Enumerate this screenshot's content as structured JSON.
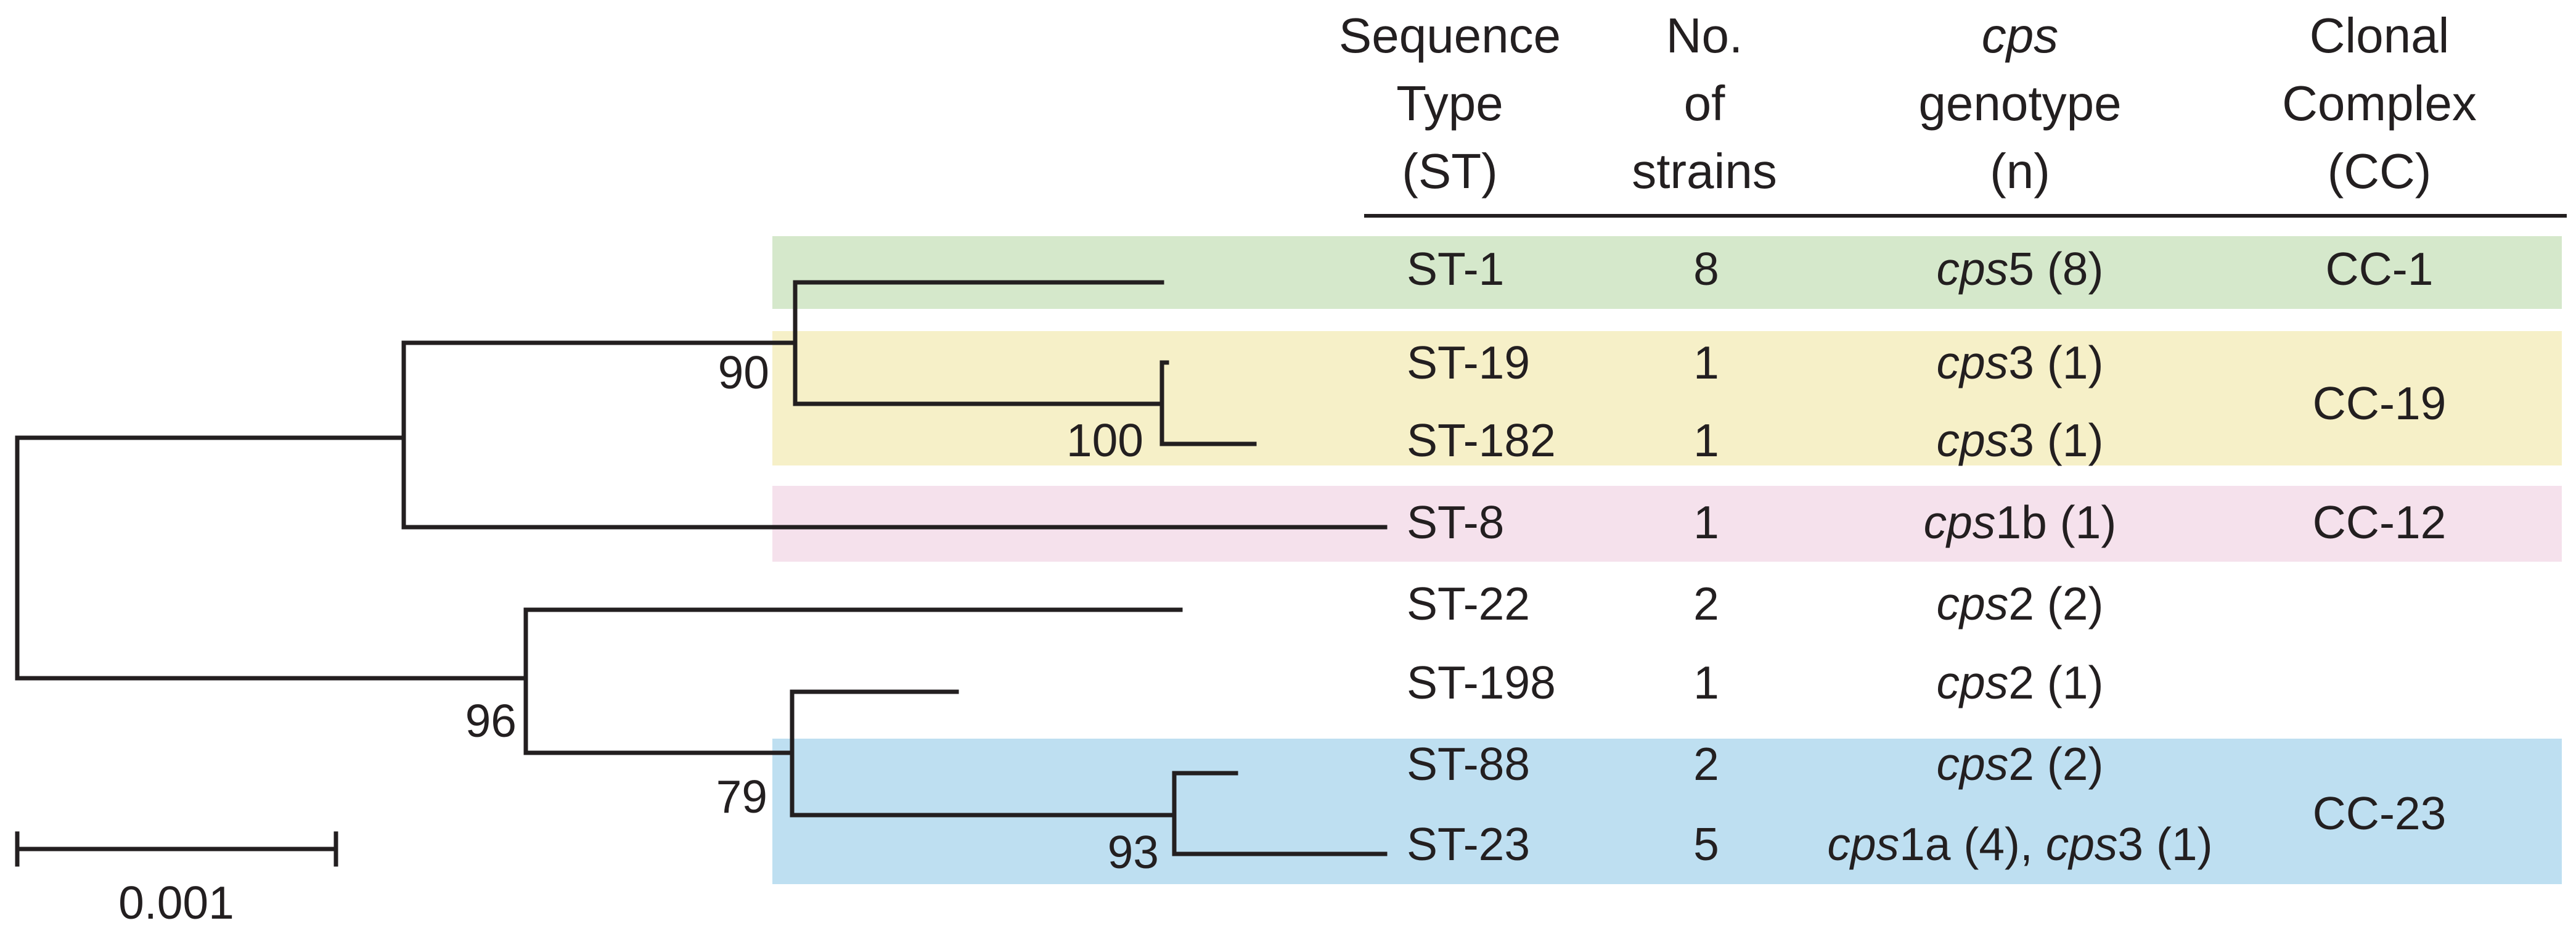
{
  "colors": {
    "cc1": "#d5e8cb",
    "cc19": "#f6f0c8",
    "cc12": "#f5e1ec",
    "cc23": "#bedff1",
    "ink": "#231f20"
  },
  "headers": {
    "sequence_type": [
      "Sequence",
      "Type",
      "(ST)"
    ],
    "no_strains": [
      "No.",
      "of",
      "strains"
    ],
    "cps_genotype": {
      "line1_italic": "cps",
      "line2": "genotype",
      "line3": "(n)"
    },
    "clonal_complex": [
      "Clonal",
      "Complex",
      "(CC)"
    ]
  },
  "rows": [
    {
      "st": "ST-1",
      "n": "8",
      "cps": [
        {
          "i": "cps",
          "r": "5 (8)"
        }
      ]
    },
    {
      "st": "ST-19",
      "n": "1",
      "cps": [
        {
          "i": "cps",
          "r": "3 (1)"
        }
      ]
    },
    {
      "st": "ST-182",
      "n": "1",
      "cps": [
        {
          "i": "cps",
          "r": "3 (1)"
        }
      ]
    },
    {
      "st": "ST-8",
      "n": "1",
      "cps": [
        {
          "i": "cps",
          "r": "1b (1)"
        }
      ]
    },
    {
      "st": "ST-22",
      "n": "2",
      "cps": [
        {
          "i": "cps",
          "r": "2 (2)"
        }
      ]
    },
    {
      "st": "ST-198",
      "n": "1",
      "cps": [
        {
          "i": "cps",
          "r": "2 (1)"
        }
      ]
    },
    {
      "st": "ST-88",
      "n": "2",
      "cps": [
        {
          "i": "cps",
          "r": "2 (2)"
        }
      ]
    },
    {
      "st": "ST-23",
      "n": "5",
      "cps": [
        {
          "i": "cps",
          "r": "1a (4), "
        },
        {
          "i": "cps",
          "r": "3 (1)"
        }
      ]
    }
  ],
  "clonal_complexes": [
    "CC-1",
    "CC-19",
    "CC-12",
    "CC-23"
  ],
  "bootstrap": [
    "90",
    "100",
    "96",
    "79",
    "93"
  ],
  "scale_bar": {
    "label": "0.001",
    "value": 0.001
  }
}
